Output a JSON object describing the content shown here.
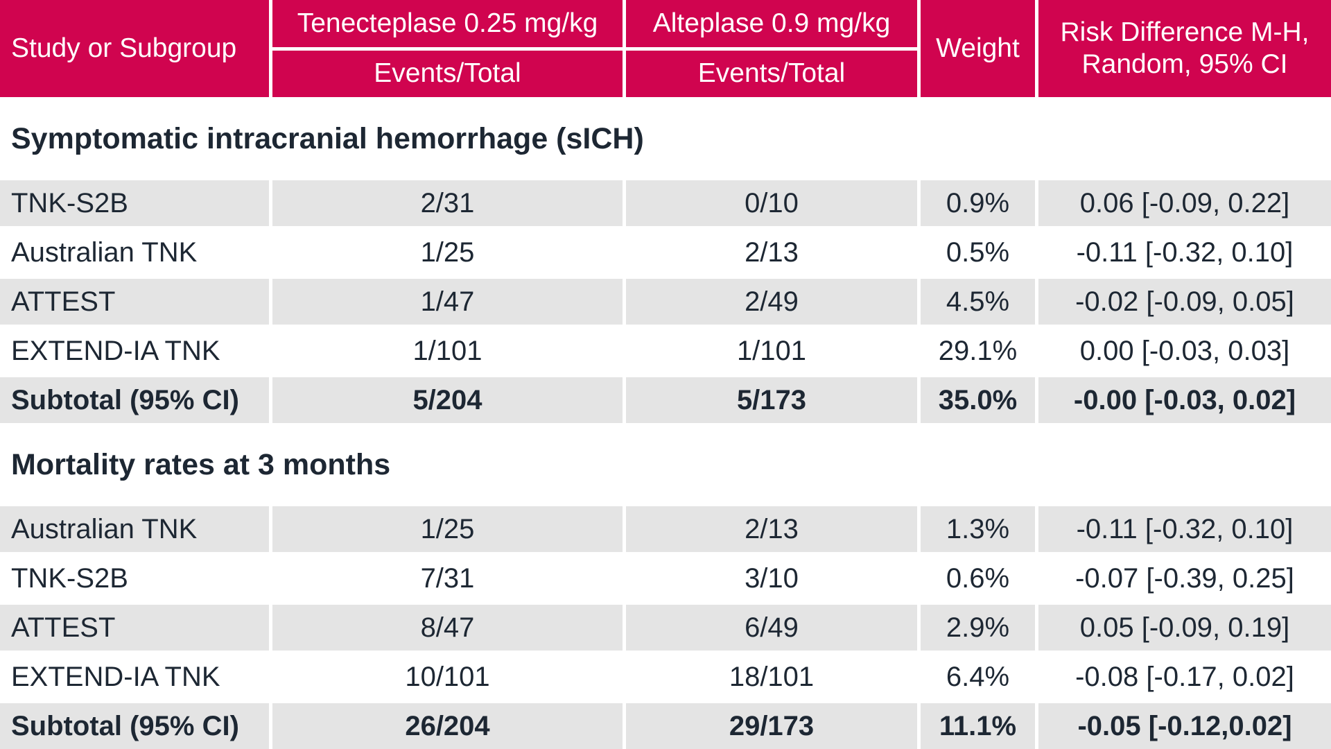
{
  "colors": {
    "header_bg": "#D0044F",
    "header_text": "#FFFFFF",
    "row_alt_bg": "#E4E4E4",
    "row_bg": "#FFFFFF",
    "text": "#1D2733"
  },
  "header": {
    "col1": "Study or Subgroup",
    "groups": [
      {
        "top": "Tenecteplase 0.25 mg/kg",
        "bottom": "Events/Total"
      },
      {
        "top": "Alteplase 0.9 mg/kg",
        "bottom": "Events/Total"
      }
    ],
    "col4": "Weight",
    "col5_line1": "Risk Difference M-H,",
    "col5_line2": "Random, 95% CI"
  },
  "chart_data": {
    "type": "table",
    "columns": [
      "Study or Subgroup",
      "Tenecteplase 0.25 mg/kg Events/Total",
      "Alteplase 0.9 mg/kg Events/Total",
      "Weight",
      "Risk Difference M-H, Random, 95% CI"
    ],
    "sections": [
      {
        "title": "Symptomatic intracranial hemorrhage (sICH)",
        "rows": [
          {
            "study": "TNK-S2B",
            "tenecteplase": "2/31",
            "alteplase": "0/10",
            "weight": "0.9%",
            "risk_difference": "0.06 [-0.09, 0.22]",
            "subtotal": false
          },
          {
            "study": "Australian TNK",
            "tenecteplase": "1/25",
            "alteplase": "2/13",
            "weight": "0.5%",
            "risk_difference": "-0.11 [-0.32, 0.10]",
            "subtotal": false
          },
          {
            "study": "ATTEST",
            "tenecteplase": "1/47",
            "alteplase": "2/49",
            "weight": "4.5%",
            "risk_difference": "-0.02 [-0.09, 0.05]",
            "subtotal": false
          },
          {
            "study": "EXTEND-IA TNK",
            "tenecteplase": "1/101",
            "alteplase": "1/101",
            "weight": "29.1%",
            "risk_difference": "0.00 [-0.03, 0.03]",
            "subtotal": false
          },
          {
            "study": "Subtotal (95% CI)",
            "tenecteplase": "5/204",
            "alteplase": "5/173",
            "weight": "35.0%",
            "risk_difference": "-0.00 [-0.03, 0.02]",
            "subtotal": true
          }
        ]
      },
      {
        "title": "Mortality rates at 3 months",
        "rows": [
          {
            "study": "Australian TNK",
            "tenecteplase": "1/25",
            "alteplase": "2/13",
            "weight": "1.3%",
            "risk_difference": "-0.11 [-0.32, 0.10]",
            "subtotal": false
          },
          {
            "study": "TNK-S2B",
            "tenecteplase": "7/31",
            "alteplase": "3/10",
            "weight": "0.6%",
            "risk_difference": "-0.07 [-0.39, 0.25]",
            "subtotal": false
          },
          {
            "study": "ATTEST",
            "tenecteplase": "8/47",
            "alteplase": "6/49",
            "weight": "2.9%",
            "risk_difference": "0.05 [-0.09, 0.19]",
            "subtotal": false
          },
          {
            "study": "EXTEND-IA TNK",
            "tenecteplase": "10/101",
            "alteplase": "18/101",
            "weight": "6.4%",
            "risk_difference": "-0.08 [-0.17, 0.02]",
            "subtotal": false
          },
          {
            "study": "Subtotal (95% CI)",
            "tenecteplase": "26/204",
            "alteplase": "29/173",
            "weight": "11.1%",
            "risk_difference": "-0.05 [-0.12,0.02]",
            "subtotal": true
          }
        ]
      }
    ]
  }
}
